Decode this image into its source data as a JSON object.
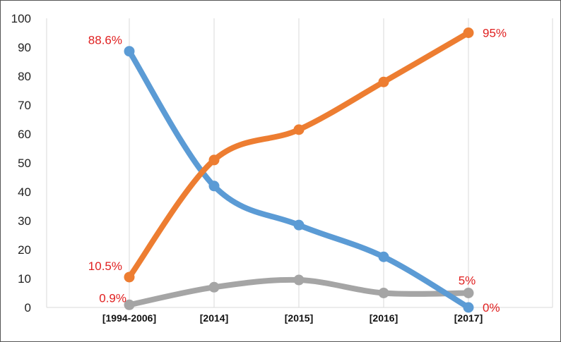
{
  "chart_data": {
    "type": "line",
    "title": "",
    "xlabel": "",
    "ylabel": "",
    "categories": [
      "[1994-2006]",
      "[2014]",
      "[2015]",
      "[2016]",
      "[2017]"
    ],
    "y_ticks": [
      "0",
      "10",
      "20",
      "30",
      "40",
      "50",
      "60",
      "70",
      "80",
      "90",
      "100"
    ],
    "ylim": [
      0,
      100
    ],
    "grid": "vertical",
    "legend": "none",
    "smooth": true,
    "series": [
      {
        "color": "#5b9bd5",
        "values": [
          88.6,
          42,
          28.5,
          17.5,
          0
        ],
        "labels": [
          {
            "index": 0,
            "text": "88.6%",
            "position": "upper-left"
          },
          {
            "index": 4,
            "text": "0%",
            "position": "right"
          }
        ]
      },
      {
        "color": "#ed7d31",
        "values": [
          10.5,
          51,
          61.5,
          78,
          95
        ],
        "labels": [
          {
            "index": 0,
            "text": "10.5%",
            "position": "upper-left"
          },
          {
            "index": 4,
            "text": "95%",
            "position": "right"
          }
        ]
      },
      {
        "color": "#a5a5a5",
        "values": [
          0.9,
          7,
          9.5,
          5,
          5
        ],
        "labels": [
          {
            "index": 0,
            "text": "0.9%",
            "position": "left"
          },
          {
            "index": 4,
            "text": "5%",
            "position": "upper"
          }
        ]
      }
    ],
    "label_color": "#e02020"
  }
}
